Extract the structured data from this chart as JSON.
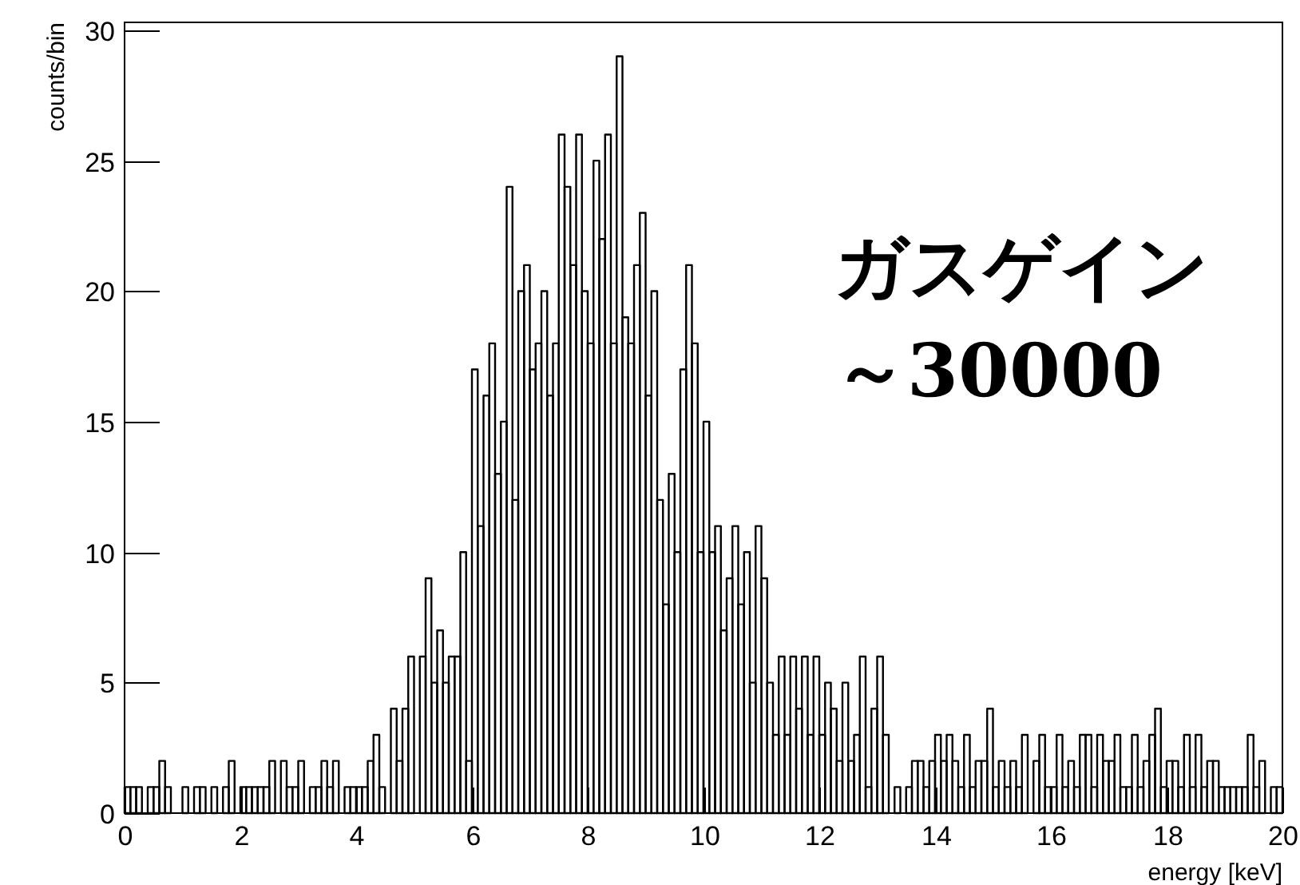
{
  "chart_data": {
    "type": "histogram",
    "xlabel": "energy [keV]",
    "ylabel": "counts/bin",
    "annotations": [
      "ガスゲイン",
      "～30000"
    ],
    "color": "#000000",
    "bins": [
      0,
      0.1,
      0.2,
      0.3,
      0.4,
      0.5,
      0.6,
      0.7,
      0.8,
      0.9,
      1,
      1.1,
      1.2,
      1.3,
      1.4,
      1.5,
      1.6,
      1.7,
      1.8,
      1.9,
      2,
      2.1,
      2.2,
      2.3,
      2.4,
      2.5,
      2.6,
      2.7,
      2.8,
      2.9,
      3,
      3.1,
      3.2,
      3.3,
      3.4,
      3.5,
      3.6,
      3.7,
      3.8,
      3.9,
      4,
      4.1,
      4.2,
      4.3,
      4.4,
      4.5,
      4.6,
      4.7,
      4.8,
      4.9,
      5,
      5.1,
      5.2,
      5.3,
      5.4,
      5.5,
      5.6,
      5.7,
      5.8,
      5.9,
      6,
      6.1,
      6.2,
      6.3,
      6.4,
      6.5,
      6.6,
      6.7,
      6.8,
      6.9,
      7,
      7.1,
      7.2,
      7.3,
      7.4,
      7.5,
      7.6,
      7.7,
      7.8,
      7.9,
      8,
      8.1,
      8.2,
      8.3,
      8.4,
      8.5,
      8.6,
      8.7,
      8.8,
      8.9,
      9,
      9.1,
      9.2,
      9.3,
      9.4,
      9.5,
      9.6,
      9.7,
      9.8,
      9.9,
      10,
      10.1,
      10.2,
      10.3,
      10.4,
      10.5,
      10.6,
      10.7,
      10.8,
      10.9,
      11,
      11.1,
      11.2,
      11.3,
      11.4,
      11.5,
      11.6,
      11.7,
      11.8,
      11.9,
      12,
      12.1,
      12.2,
      12.3,
      12.4,
      12.5,
      12.6,
      12.7,
      12.8,
      12.9,
      13,
      13.1,
      13.2,
      13.3,
      13.4,
      13.5,
      13.6,
      13.7,
      13.8,
      13.9,
      14,
      14.1,
      14.2,
      14.3,
      14.4,
      14.5,
      14.6,
      14.7,
      14.8,
      14.9,
      15,
      15.1,
      15.2,
      15.3,
      15.4,
      15.5,
      15.6,
      15.7,
      15.8,
      15.9,
      16,
      16.1,
      16.2,
      16.3,
      16.4,
      16.5,
      16.6,
      16.7,
      16.8,
      16.9,
      17,
      17.1,
      17.2,
      17.3,
      17.4,
      17.5,
      17.6,
      17.7,
      17.8,
      17.9,
      18,
      18.1,
      18.2,
      18.3,
      18.4,
      18.5,
      18.6,
      18.7,
      18.8,
      18.9,
      19,
      19.1,
      19.2,
      19.3,
      19.4,
      19.5,
      19.6,
      19.7,
      19.8,
      19.9,
      20
    ],
    "values": [
      1,
      1,
      1,
      0,
      1,
      1,
      2,
      1,
      0,
      0,
      1,
      0,
      1,
      1,
      0,
      1,
      0,
      1,
      2,
      0,
      1,
      1,
      1,
      1,
      1,
      2,
      0,
      2,
      1,
      1,
      2,
      0,
      1,
      1,
      2,
      1,
      2,
      0,
      1,
      1,
      1,
      1,
      2,
      3,
      1,
      0,
      4,
      2,
      4,
      6,
      0,
      6,
      9,
      5,
      7,
      5,
      6,
      6,
      10,
      2,
      17,
      11,
      16,
      18,
      13,
      15,
      24,
      12,
      20,
      21,
      17,
      18,
      20,
      16,
      18,
      26,
      24,
      21,
      26,
      20,
      18,
      25,
      22,
      26,
      18,
      29,
      19,
      18,
      21,
      23,
      16,
      20,
      12,
      8,
      13,
      10,
      17,
      21,
      18,
      10,
      15,
      10,
      11,
      7,
      9,
      11,
      8,
      10,
      5,
      11,
      9,
      5,
      3,
      6,
      3,
      6,
      4,
      6,
      3,
      6,
      3,
      5,
      4,
      2,
      5,
      2,
      3,
      6,
      1,
      4,
      6,
      3,
      0,
      1,
      0,
      1,
      2,
      2,
      1,
      2,
      3,
      2,
      3,
      2,
      1,
      3,
      1,
      2,
      2,
      4,
      1,
      2,
      1,
      2,
      1,
      3,
      0,
      2,
      3,
      1,
      1,
      3,
      1,
      2,
      1,
      3,
      3,
      1,
      3,
      2,
      2,
      3,
      1,
      1,
      3,
      1,
      2,
      3,
      4,
      1,
      2,
      2,
      1,
      3,
      1,
      3,
      1,
      2,
      2,
      1,
      1,
      1,
      1,
      1,
      3,
      1,
      2,
      0,
      1,
      1
    ],
    "xlim": [
      0,
      20
    ],
    "ylim": [
      0,
      30.3
    ],
    "xticks": [
      0,
      2,
      4,
      6,
      8,
      10,
      12,
      14,
      16,
      18,
      20
    ],
    "yticks": [
      0,
      5,
      10,
      15,
      20,
      25,
      30
    ],
    "grid": false
  }
}
